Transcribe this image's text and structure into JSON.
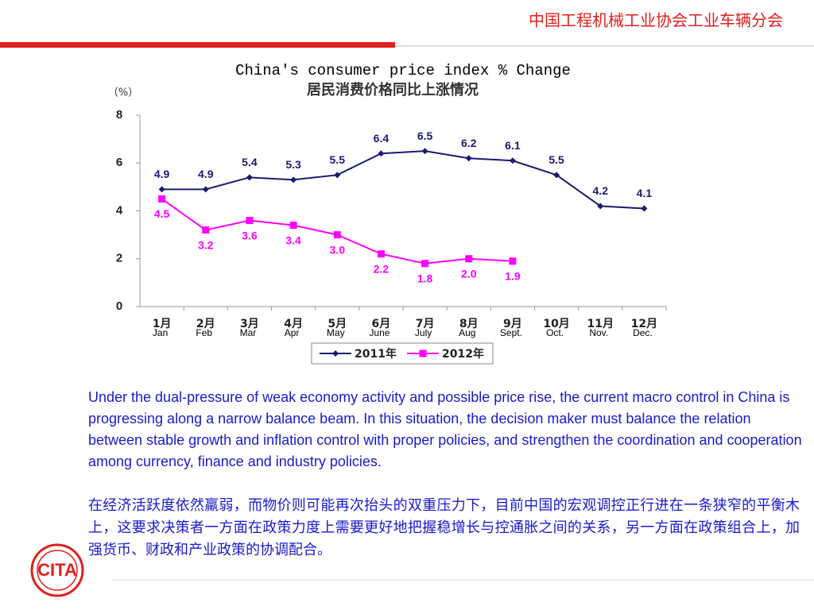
{
  "header": {
    "title": "中国工程机械工业协会工业车辆分会"
  },
  "logo": {
    "text": "CITA"
  },
  "chart_data": {
    "type": "line",
    "title": "China's consumer price index % Change",
    "subtitle": "居民消费价格同比上涨情况",
    "y_label": "（%）",
    "categories": [
      "1月",
      "2月",
      "3月",
      "4月",
      "5月",
      "6月",
      "7月",
      "8月",
      "9月",
      "10月",
      "11月",
      "12月"
    ],
    "categories_en": [
      "Jan",
      "Feb",
      "Mar",
      "Apr",
      "May",
      "June",
      "July",
      "Aug",
      "Sept.",
      "Oct.",
      "Nov.",
      "Dec."
    ],
    "series": [
      {
        "name": "2011年",
        "color": "#1a1a6e",
        "marker": "diamond",
        "values": [
          4.9,
          4.9,
          5.4,
          5.3,
          5.5,
          6.4,
          6.5,
          6.2,
          6.1,
          5.5,
          4.2,
          4.1
        ],
        "value_labels": [
          "4.9",
          "4.9",
          "5.4",
          "5.3",
          "5.5",
          "6.4",
          "6.5",
          "6.2",
          "6.1",
          "5.5",
          "4.2",
          "4.1"
        ]
      },
      {
        "name": "2012年",
        "color": "#ff00ff",
        "marker": "square",
        "values": [
          4.5,
          3.2,
          3.6,
          3.4,
          3.0,
          2.2,
          1.8,
          2.0,
          1.9,
          null,
          null,
          null
        ],
        "value_labels": [
          "4.5",
          "3.2",
          "3.6",
          "3.4",
          "3.0",
          "2.2",
          "1.8",
          "2.0",
          "1.9",
          null,
          null,
          null
        ]
      }
    ],
    "ylim": [
      0,
      8
    ],
    "yticks": [
      0,
      2,
      4,
      6,
      8
    ],
    "grid": false,
    "legend": "bottom"
  },
  "body": {
    "english": "Under the dual-pressure of weak economy activity and possible price rise, the current macro control in China is progressing along a narrow balance beam. In this situation, the decision maker must balance the relation between stable growth and inflation control with proper policies, and strengthen the coordination and cooperation among currency, finance and industry policies.",
    "chinese": "在经济活跃度依然羸弱，而物价则可能再次抬头的双重压力下，目前中国的宏观调控正行进在一条狭窄的平衡木上，这要求决策者一方面在政策力度上需要更好地把握稳增长与控通胀之间的关系，另一方面在政策组合上，加强货币、财政和产业政策的协调配合。"
  }
}
